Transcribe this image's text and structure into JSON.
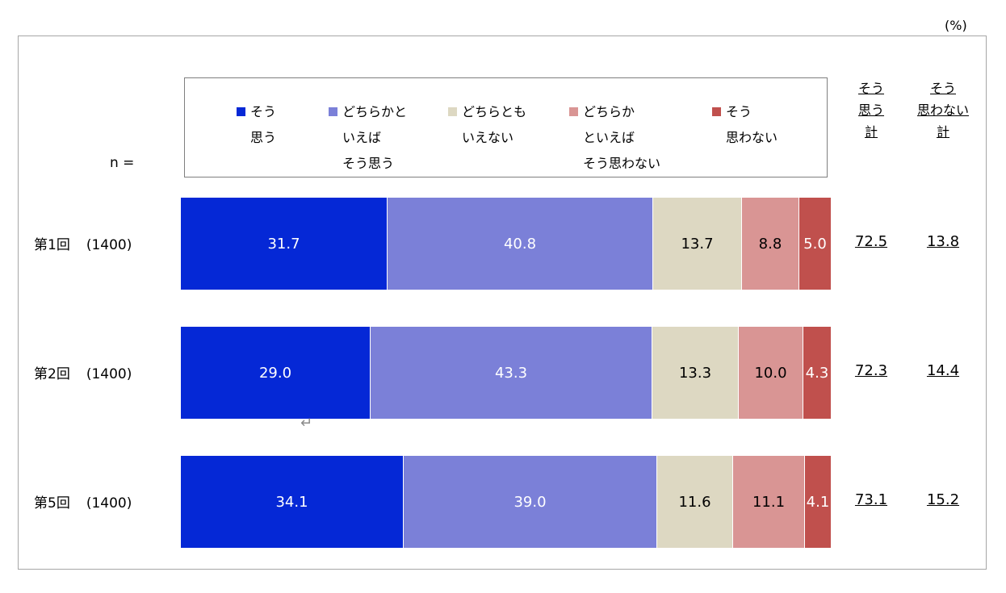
{
  "unit_label": "(%)",
  "n_label": "n =",
  "chart_data": {
    "type": "bar",
    "orientation": "horizontal",
    "stacked": true,
    "categories": [
      "第1回",
      "第2回",
      "第5回"
    ],
    "sample_sizes": [
      "(1400)",
      "(1400)",
      "(1400)"
    ],
    "series": [
      {
        "name": "そう思う",
        "legend_lines": [
          "そう",
          "思う"
        ],
        "color": "#0528d6",
        "text_color": "#ffffff",
        "values": [
          31.7,
          29.0,
          34.1
        ]
      },
      {
        "name": "どちらかといえばそう思う",
        "legend_lines": [
          "どちらかと",
          "いえば",
          "そう思う"
        ],
        "color": "#7b80d8",
        "text_color": "#ffffff",
        "values": [
          40.8,
          43.3,
          39.0
        ]
      },
      {
        "name": "どちらともいえない",
        "legend_lines": [
          "どちらとも",
          "いえない"
        ],
        "color": "#ddd8c2",
        "text_color": "#000000",
        "values": [
          13.7,
          13.3,
          11.6
        ]
      },
      {
        "name": "どちらかといえばそう思わない",
        "legend_lines": [
          "どちらか",
          "といえば",
          "そう思わない"
        ],
        "color": "#d99594",
        "text_color": "#000000",
        "values": [
          8.8,
          10.0,
          11.1
        ]
      },
      {
        "name": "そう思わない",
        "legend_lines": [
          "そう",
          "思わない"
        ],
        "color": "#c0504d",
        "text_color": "#ffffff",
        "values": [
          5.0,
          4.3,
          4.1
        ]
      }
    ],
    "summary_columns": [
      {
        "header_lines": [
          "そう",
          "思う",
          "計"
        ],
        "values": [
          "72.5",
          "72.3",
          "73.1"
        ]
      },
      {
        "header_lines": [
          "そう",
          "思わない",
          "計"
        ],
        "values": [
          "13.8",
          "14.4",
          "15.2"
        ]
      }
    ],
    "xlim": [
      0,
      100
    ],
    "legend_position": "top",
    "grid": false
  }
}
